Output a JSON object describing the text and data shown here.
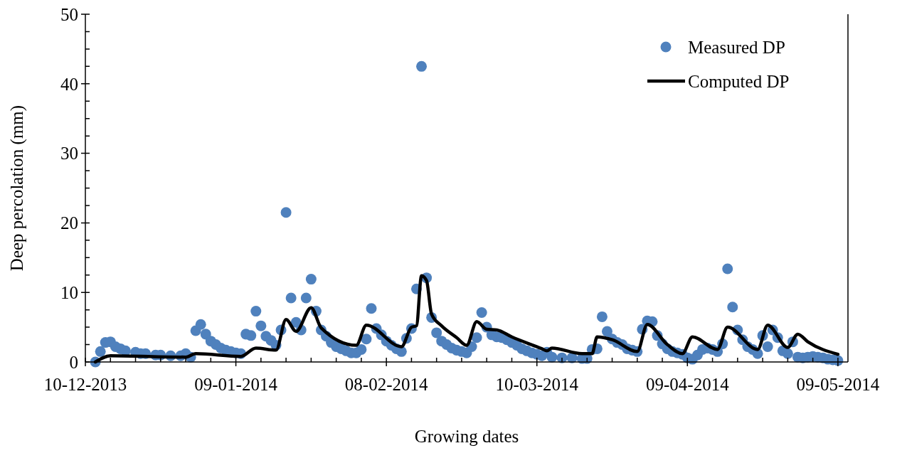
{
  "chart_data": {
    "type": "scatter",
    "xlabel": "Growing dates",
    "ylabel": "Deep percolation (mm)",
    "xlim": [
      "2013-12-10",
      "2014-05-11"
    ],
    "xticks": [
      {
        "value": "2013-12-10",
        "label": "10-12-2013"
      },
      {
        "value": "2013-12-15",
        "label": null
      },
      {
        "value": "2013-12-20",
        "label": null
      },
      {
        "value": "2013-12-25",
        "label": null
      },
      {
        "value": "2013-12-30",
        "label": null
      },
      {
        "value": "2014-01-04",
        "label": null
      },
      {
        "value": "2014-01-09",
        "label": "09-01-2014"
      },
      {
        "value": "2014-01-14",
        "label": null
      },
      {
        "value": "2014-01-19",
        "label": null
      },
      {
        "value": "2014-01-24",
        "label": null
      },
      {
        "value": "2014-01-29",
        "label": null
      },
      {
        "value": "2014-02-03",
        "label": null
      },
      {
        "value": "2014-02-08",
        "label": "08-02-2014"
      },
      {
        "value": "2014-02-13",
        "label": null
      },
      {
        "value": "2014-02-18",
        "label": null
      },
      {
        "value": "2014-02-23",
        "label": null
      },
      {
        "value": "2014-02-28",
        "label": null
      },
      {
        "value": "2014-03-05",
        "label": null
      },
      {
        "value": "2014-03-10",
        "label": "10-03-2014"
      },
      {
        "value": "2014-03-15",
        "label": null
      },
      {
        "value": "2014-03-20",
        "label": null
      },
      {
        "value": "2014-03-25",
        "label": null
      },
      {
        "value": "2014-03-30",
        "label": null
      },
      {
        "value": "2014-04-04",
        "label": null
      },
      {
        "value": "2014-04-09",
        "label": "09-04-2014"
      },
      {
        "value": "2014-04-14",
        "label": null
      },
      {
        "value": "2014-04-19",
        "label": null
      },
      {
        "value": "2014-04-24",
        "label": null
      },
      {
        "value": "2014-04-29",
        "label": null
      },
      {
        "value": "2014-05-04",
        "label": null
      },
      {
        "value": "2014-05-09",
        "label": "09-05-2014"
      }
    ],
    "ylim": [
      0,
      50
    ],
    "yticks": [
      0,
      {
        "value": 2.5,
        "label": null
      },
      {
        "value": 5,
        "label": null
      },
      {
        "value": 7.5,
        "label": null
      },
      10,
      {
        "value": 12.5,
        "label": null
      },
      {
        "value": 15,
        "label": null
      },
      {
        "value": 17.5,
        "label": null
      },
      20,
      {
        "value": 22.5,
        "label": null
      },
      {
        "value": 25,
        "label": null
      },
      {
        "value": 27.5,
        "label": null
      },
      30,
      {
        "value": 32.5,
        "label": null
      },
      {
        "value": 35,
        "label": null
      },
      {
        "value": 37.5,
        "label": null
      },
      40,
      {
        "value": 42.5,
        "label": null
      },
      {
        "value": 45,
        "label": null
      },
      {
        "value": 47.5,
        "label": null
      },
      50
    ],
    "grid": false,
    "legend": "top right",
    "series": [
      {
        "name": "Measured DP",
        "marker": "circle",
        "color": "#4f81bd",
        "x": [
          "2013-12-12",
          "2013-12-13",
          "2013-12-14",
          "2013-12-15",
          "2013-12-16",
          "2013-12-17",
          "2013-12-18",
          "2013-12-20",
          "2013-12-21",
          "2013-12-22",
          "2013-12-24",
          "2013-12-25",
          "2013-12-27",
          "2013-12-29",
          "2013-12-30",
          "2013-12-31",
          "2014-01-01",
          "2014-01-02",
          "2014-01-03",
          "2014-01-04",
          "2014-01-05",
          "2014-01-06",
          "2014-01-07",
          "2014-01-08",
          "2014-01-09",
          "2014-01-10",
          "2014-01-11",
          "2014-01-12",
          "2014-01-13",
          "2014-01-14",
          "2014-01-15",
          "2014-01-16",
          "2014-01-17",
          "2014-01-18",
          "2014-01-19",
          "2014-01-20",
          "2014-01-21",
          "2014-01-22",
          "2014-01-23",
          "2014-01-24",
          "2014-01-25",
          "2014-01-26",
          "2014-01-27",
          "2014-01-28",
          "2014-01-29",
          "2014-01-30",
          "2014-01-31",
          "2014-02-01",
          "2014-02-02",
          "2014-02-03",
          "2014-02-04",
          "2014-02-05",
          "2014-02-06",
          "2014-02-07",
          "2014-02-08",
          "2014-02-09",
          "2014-02-10",
          "2014-02-11",
          "2014-02-12",
          "2014-02-13",
          "2014-02-14",
          "2014-02-15",
          "2014-02-16",
          "2014-02-17",
          "2014-02-18",
          "2014-02-19",
          "2014-02-20",
          "2014-02-21",
          "2014-02-22",
          "2014-02-23",
          "2014-02-24",
          "2014-02-25",
          "2014-02-26",
          "2014-02-27",
          "2014-02-28",
          "2014-03-01",
          "2014-03-02",
          "2014-03-03",
          "2014-03-04",
          "2014-03-05",
          "2014-03-06",
          "2014-03-07",
          "2014-03-08",
          "2014-03-09",
          "2014-03-10",
          "2014-03-11",
          "2014-03-12",
          "2014-03-13",
          "2014-03-15",
          "2014-03-17",
          "2014-03-19",
          "2014-03-20",
          "2014-03-21",
          "2014-03-22",
          "2014-03-23",
          "2014-03-24",
          "2014-03-25",
          "2014-03-26",
          "2014-03-27",
          "2014-03-28",
          "2014-03-29",
          "2014-03-30",
          "2014-03-31",
          "2014-04-01",
          "2014-04-02",
          "2014-04-03",
          "2014-04-04",
          "2014-04-05",
          "2014-04-06",
          "2014-04-07",
          "2014-04-08",
          "2014-04-09",
          "2014-04-10",
          "2014-04-11",
          "2014-04-12",
          "2014-04-13",
          "2014-04-14",
          "2014-04-15",
          "2014-04-16",
          "2014-04-17",
          "2014-04-18",
          "2014-04-19",
          "2014-04-20",
          "2014-04-21",
          "2014-04-22",
          "2014-04-23",
          "2014-04-24",
          "2014-04-25",
          "2014-04-26",
          "2014-04-27",
          "2014-04-28",
          "2014-04-29",
          "2014-04-30",
          "2014-05-01",
          "2014-05-02",
          "2014-05-03",
          "2014-05-04",
          "2014-05-05",
          "2014-05-06",
          "2014-05-07",
          "2014-05-08",
          "2014-05-09"
        ],
        "values": [
          0.0,
          1.5,
          2.8,
          2.9,
          2.2,
          1.9,
          1.6,
          1.4,
          1.2,
          1.2,
          1.0,
          1.0,
          0.9,
          0.9,
          1.2,
          0.7,
          4.5,
          5.4,
          4.0,
          3.0,
          2.5,
          2.0,
          1.7,
          1.5,
          1.3,
          1.2,
          4.0,
          3.8,
          7.3,
          5.2,
          3.7,
          3.1,
          2.4,
          4.6,
          21.5,
          9.2,
          5.7,
          4.6,
          9.2,
          11.9,
          7.3,
          4.6,
          3.7,
          2.8,
          2.2,
          1.9,
          1.6,
          1.3,
          1.3,
          1.8,
          3.3,
          7.7,
          4.8,
          3.9,
          3.0,
          2.4,
          1.9,
          1.5,
          3.4,
          4.8,
          10.5,
          42.5,
          12.1,
          6.4,
          4.2,
          3.0,
          2.5,
          2.0,
          1.7,
          1.5,
          1.3,
          2.2,
          3.5,
          7.1,
          5.0,
          3.9,
          3.6,
          3.5,
          3.2,
          2.8,
          2.4,
          1.9,
          1.6,
          1.3,
          1.1,
          0.9,
          1.4,
          0.7,
          0.6,
          0.6,
          0.5,
          0.5,
          1.8,
          1.9,
          6.5,
          4.4,
          3.3,
          2.8,
          2.5,
          1.9,
          1.7,
          1.5,
          4.7,
          5.9,
          5.8,
          3.8,
          2.6,
          1.9,
          1.5,
          1.3,
          1.1,
          0.6,
          0.4,
          1.0,
          1.8,
          2.0,
          1.8,
          1.5,
          2.6,
          13.4,
          7.9,
          4.6,
          3.2,
          2.2,
          1.8,
          1.2,
          3.8,
          2.2,
          4.6,
          3.5,
          1.6,
          1.2,
          2.9,
          0.7,
          0.6,
          0.7,
          0.8,
          0.7,
          0.6,
          0.4,
          0.3,
          0.2
        ]
      },
      {
        "name": "Computed DP",
        "type": "line",
        "marker": "none",
        "line_style": "solid",
        "color": "#000000",
        "x": [
          "2013-12-12",
          "2013-12-15",
          "2013-12-30",
          "2014-01-01",
          "2014-01-10",
          "2014-01-13",
          "2014-01-17",
          "2014-01-19",
          "2014-01-21",
          "2014-01-24",
          "2014-01-26",
          "2014-02-02",
          "2014-02-04",
          "2014-02-11",
          "2014-02-13",
          "2014-02-14",
          "2014-02-15",
          "2014-02-16",
          "2014-02-17",
          "2014-02-19",
          "2014-02-22",
          "2014-02-24",
          "2014-02-26",
          "2014-02-28",
          "2014-03-02",
          "2014-03-05",
          "2014-03-11",
          "2014-03-12",
          "2014-03-13",
          "2014-03-19",
          "2014-03-21",
          "2014-03-22",
          "2014-03-25",
          "2014-03-30",
          "2014-04-01",
          "2014-04-05",
          "2014-04-08",
          "2014-04-10",
          "2014-04-15",
          "2014-04-17",
          "2014-04-23",
          "2014-04-25",
          "2014-04-29",
          "2014-05-01",
          "2014-05-03",
          "2014-05-09"
        ],
        "values": [
          0.0,
          0.9,
          0.7,
          1.2,
          0.8,
          2.0,
          1.7,
          6.1,
          4.4,
          7.8,
          4.9,
          2.4,
          5.3,
          2.2,
          5.0,
          5.2,
          12.4,
          11.7,
          6.9,
          5.2,
          3.5,
          2.4,
          5.8,
          4.7,
          4.6,
          3.6,
          1.9,
          1.6,
          2.0,
          1.2,
          1.2,
          3.6,
          3.2,
          1.5,
          5.4,
          2.5,
          1.2,
          3.6,
          1.8,
          5.0,
          1.8,
          5.3,
          2.1,
          4.0,
          2.9,
          1.1
        ]
      }
    ]
  }
}
